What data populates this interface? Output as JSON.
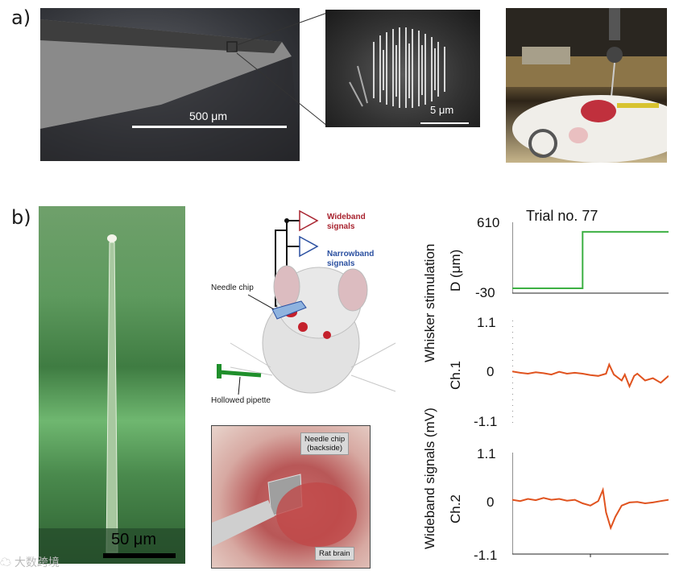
{
  "panel_a": {
    "label": "a)",
    "scale_needle": "500 μm",
    "scale_nanowire": "5 μm"
  },
  "panel_b": {
    "label": "b)",
    "scale_green": "50 μm",
    "diagram": {
      "wideband": [
        "Wideband",
        "signals"
      ],
      "narrowband": [
        "Narrowband",
        "signals"
      ],
      "needle_chip": "Needle chip",
      "hollowed_pipette": "Hollowed pipette",
      "wideband_color": "#a8232f",
      "narrowband_color": "#2a4fa0"
    },
    "photo": {
      "chip_label": [
        "Needle chip",
        "(backside)"
      ],
      "brain_label": "Rat brain"
    }
  },
  "watermark": "大数跨境",
  "chart_data": [
    {
      "type": "line",
      "title": "Trial no. 77",
      "ylabel_lines": [
        "Whisker stimulation",
        "D (μm)"
      ],
      "ylim": [
        -30,
        610
      ],
      "yticks": [
        "610",
        "-30"
      ],
      "series": [
        {
          "x": [
            0,
            0.45,
            0.45,
            1.0
          ],
          "values": [
            -30,
            -30,
            560,
            560
          ]
        }
      ],
      "color": "#3cb043"
    },
    {
      "type": "line",
      "channel": "Ch.1",
      "ylim": [
        -1.1,
        1.1
      ],
      "yticks": [
        "1.1",
        "0",
        "-1.1"
      ],
      "series": [
        {
          "x": [
            0,
            0.05,
            0.1,
            0.15,
            0.2,
            0.25,
            0.3,
            0.35,
            0.4,
            0.45,
            0.5,
            0.55,
            0.6,
            0.62,
            0.65,
            0.7,
            0.72,
            0.75,
            0.78,
            0.8,
            0.85,
            0.9,
            0.95,
            1.0
          ],
          "values": [
            0.05,
            0.02,
            0.0,
            0.03,
            0.01,
            -0.02,
            0.04,
            0.0,
            0.02,
            0.0,
            -0.03,
            -0.05,
            0.0,
            0.2,
            -0.02,
            -0.15,
            -0.02,
            -0.28,
            -0.05,
            0.0,
            -0.15,
            -0.1,
            -0.2,
            -0.05
          ]
        }
      ],
      "color": "#e0531f"
    },
    {
      "type": "line",
      "channel": "Ch.2",
      "ylim": [
        -1.1,
        1.1
      ],
      "yticks": [
        "1.1",
        "0",
        "-1.1"
      ],
      "ylabel_shared": "Wideband signals  (mV)",
      "series": [
        {
          "x": [
            0,
            0.05,
            0.1,
            0.15,
            0.2,
            0.25,
            0.3,
            0.35,
            0.4,
            0.45,
            0.5,
            0.55,
            0.58,
            0.6,
            0.63,
            0.66,
            0.7,
            0.75,
            0.8,
            0.85,
            0.9,
            0.95,
            1.0
          ],
          "values": [
            0.08,
            0.05,
            0.1,
            0.07,
            0.12,
            0.08,
            0.1,
            0.06,
            0.08,
            0.0,
            -0.05,
            0.05,
            0.3,
            -0.2,
            -0.55,
            -0.3,
            -0.05,
            0.02,
            0.03,
            0.0,
            0.02,
            0.05,
            0.08
          ]
        }
      ],
      "color": "#e0531f"
    }
  ]
}
